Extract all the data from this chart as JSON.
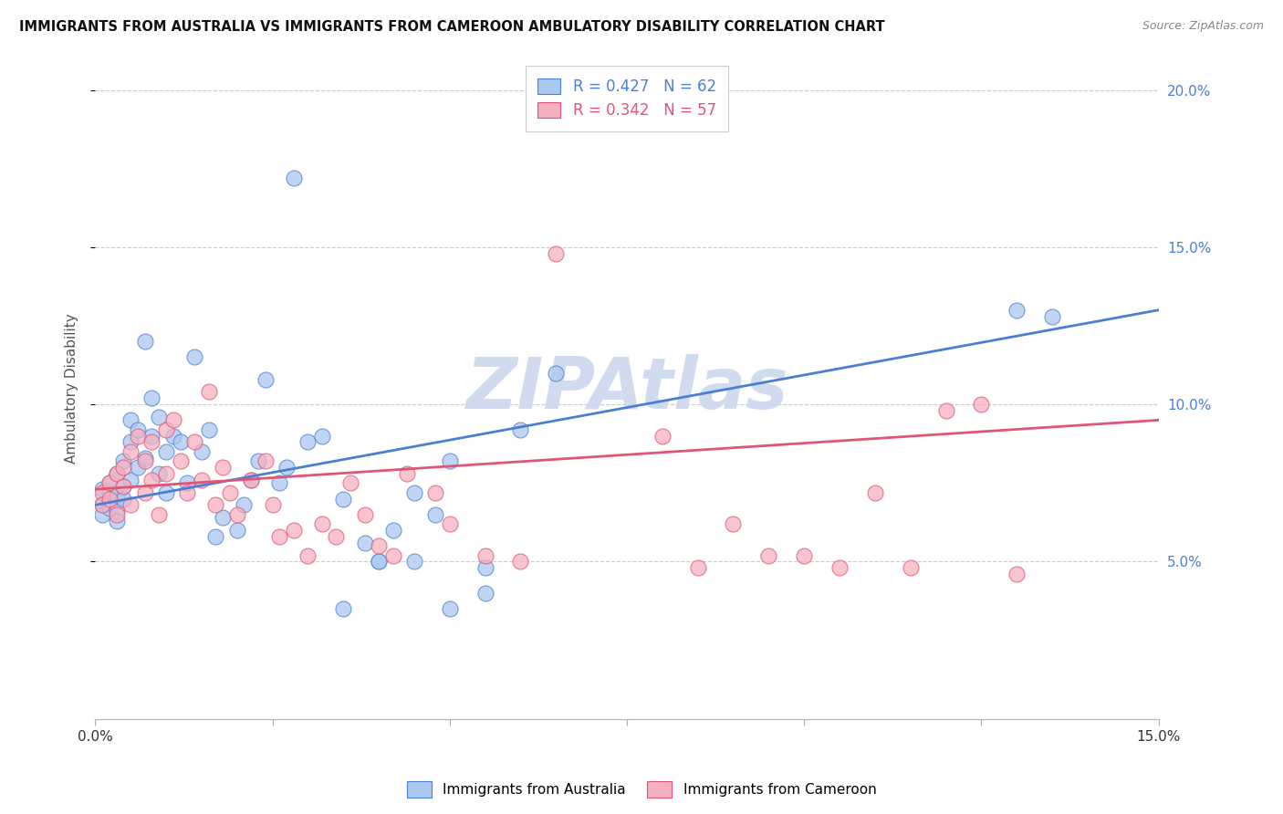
{
  "title": "IMMIGRANTS FROM AUSTRALIA VS IMMIGRANTS FROM CAMEROON AMBULATORY DISABILITY CORRELATION CHART",
  "source": "Source: ZipAtlas.com",
  "ylabel": "Ambulatory Disability",
  "xlim": [
    0.0,
    0.15
  ],
  "ylim": [
    0.0,
    0.21
  ],
  "grid_color": "#cccccc",
  "background_color": "#ffffff",
  "australia_color": "#aac8f0",
  "cameroon_color": "#f5b0c0",
  "australia_line_color": "#4a7fd4",
  "cameroon_line_color": "#e05575",
  "watermark_color": "#ccd8ee",
  "legend_R_australia": "R = 0.427",
  "legend_N_australia": "N = 62",
  "legend_R_cameroon": "R = 0.342",
  "legend_N_cameroon": "N = 57",
  "australia_x": [
    0.001,
    0.001,
    0.001,
    0.002,
    0.002,
    0.002,
    0.002,
    0.003,
    0.003,
    0.003,
    0.003,
    0.004,
    0.004,
    0.004,
    0.005,
    0.005,
    0.005,
    0.006,
    0.006,
    0.007,
    0.007,
    0.008,
    0.008,
    0.009,
    0.009,
    0.01,
    0.01,
    0.011,
    0.012,
    0.013,
    0.014,
    0.015,
    0.016,
    0.017,
    0.018,
    0.02,
    0.021,
    0.022,
    0.023,
    0.024,
    0.026,
    0.027,
    0.028,
    0.03,
    0.032,
    0.035,
    0.038,
    0.04,
    0.042,
    0.045,
    0.048,
    0.05,
    0.055,
    0.06,
    0.065,
    0.035,
    0.04,
    0.045,
    0.05,
    0.055,
    0.13,
    0.135
  ],
  "australia_y": [
    0.073,
    0.068,
    0.065,
    0.072,
    0.075,
    0.069,
    0.067,
    0.071,
    0.078,
    0.066,
    0.063,
    0.074,
    0.07,
    0.082,
    0.076,
    0.088,
    0.095,
    0.08,
    0.092,
    0.083,
    0.12,
    0.09,
    0.102,
    0.078,
    0.096,
    0.085,
    0.072,
    0.09,
    0.088,
    0.075,
    0.115,
    0.085,
    0.092,
    0.058,
    0.064,
    0.06,
    0.068,
    0.076,
    0.082,
    0.108,
    0.075,
    0.08,
    0.172,
    0.088,
    0.09,
    0.07,
    0.056,
    0.05,
    0.06,
    0.072,
    0.065,
    0.082,
    0.04,
    0.092,
    0.11,
    0.035,
    0.05,
    0.05,
    0.035,
    0.048,
    0.13,
    0.128
  ],
  "cameroon_x": [
    0.001,
    0.001,
    0.002,
    0.002,
    0.003,
    0.003,
    0.004,
    0.004,
    0.005,
    0.005,
    0.006,
    0.007,
    0.007,
    0.008,
    0.008,
    0.009,
    0.01,
    0.01,
    0.011,
    0.012,
    0.013,
    0.014,
    0.015,
    0.016,
    0.017,
    0.018,
    0.019,
    0.02,
    0.022,
    0.024,
    0.025,
    0.026,
    0.028,
    0.03,
    0.032,
    0.034,
    0.036,
    0.038,
    0.04,
    0.042,
    0.044,
    0.048,
    0.05,
    0.055,
    0.06,
    0.065,
    0.08,
    0.085,
    0.09,
    0.095,
    0.1,
    0.105,
    0.11,
    0.115,
    0.12,
    0.125,
    0.13
  ],
  "cameroon_y": [
    0.072,
    0.068,
    0.075,
    0.07,
    0.078,
    0.065,
    0.08,
    0.074,
    0.085,
    0.068,
    0.09,
    0.072,
    0.082,
    0.076,
    0.088,
    0.065,
    0.092,
    0.078,
    0.095,
    0.082,
    0.072,
    0.088,
    0.076,
    0.104,
    0.068,
    0.08,
    0.072,
    0.065,
    0.076,
    0.082,
    0.068,
    0.058,
    0.06,
    0.052,
    0.062,
    0.058,
    0.075,
    0.065,
    0.055,
    0.052,
    0.078,
    0.072,
    0.062,
    0.052,
    0.05,
    0.148,
    0.09,
    0.048,
    0.062,
    0.052,
    0.052,
    0.048,
    0.072,
    0.048,
    0.098,
    0.1,
    0.046
  ]
}
